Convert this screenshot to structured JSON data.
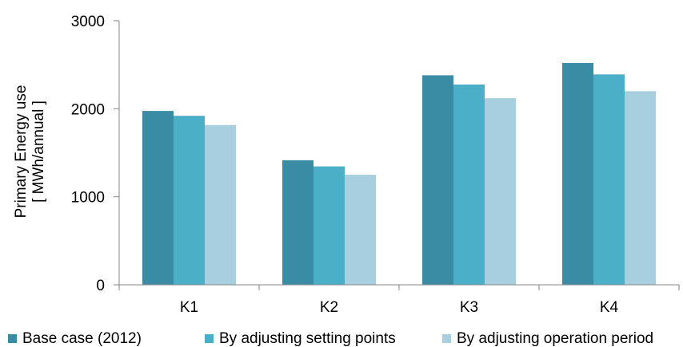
{
  "chart_data": {
    "type": "bar",
    "ylabel_line1": "Primary Energy use",
    "ylabel_line2": "[ MWh/annual ]",
    "xlabel": "",
    "ylim": [
      0,
      3000
    ],
    "yticks": [
      "0",
      "1000",
      "2000",
      "3000"
    ],
    "ytick_values": [
      0,
      1000,
      2000,
      3000
    ],
    "grid": false,
    "legend_position": "bottom",
    "categories": [
      "K1",
      "K2",
      "K3",
      "K4"
    ],
    "series": [
      {
        "name": "Base case (2012)",
        "color": "#3a8ca4",
        "values": [
          1975,
          1415,
          2380,
          2520
        ]
      },
      {
        "name": "By adjusting setting points",
        "color": "#4bafc8",
        "values": [
          1920,
          1345,
          2275,
          2390
        ]
      },
      {
        "name": "By adjusting operation period",
        "color": "#a8cfdf",
        "values": [
          1815,
          1250,
          2120,
          2200
        ]
      }
    ]
  }
}
